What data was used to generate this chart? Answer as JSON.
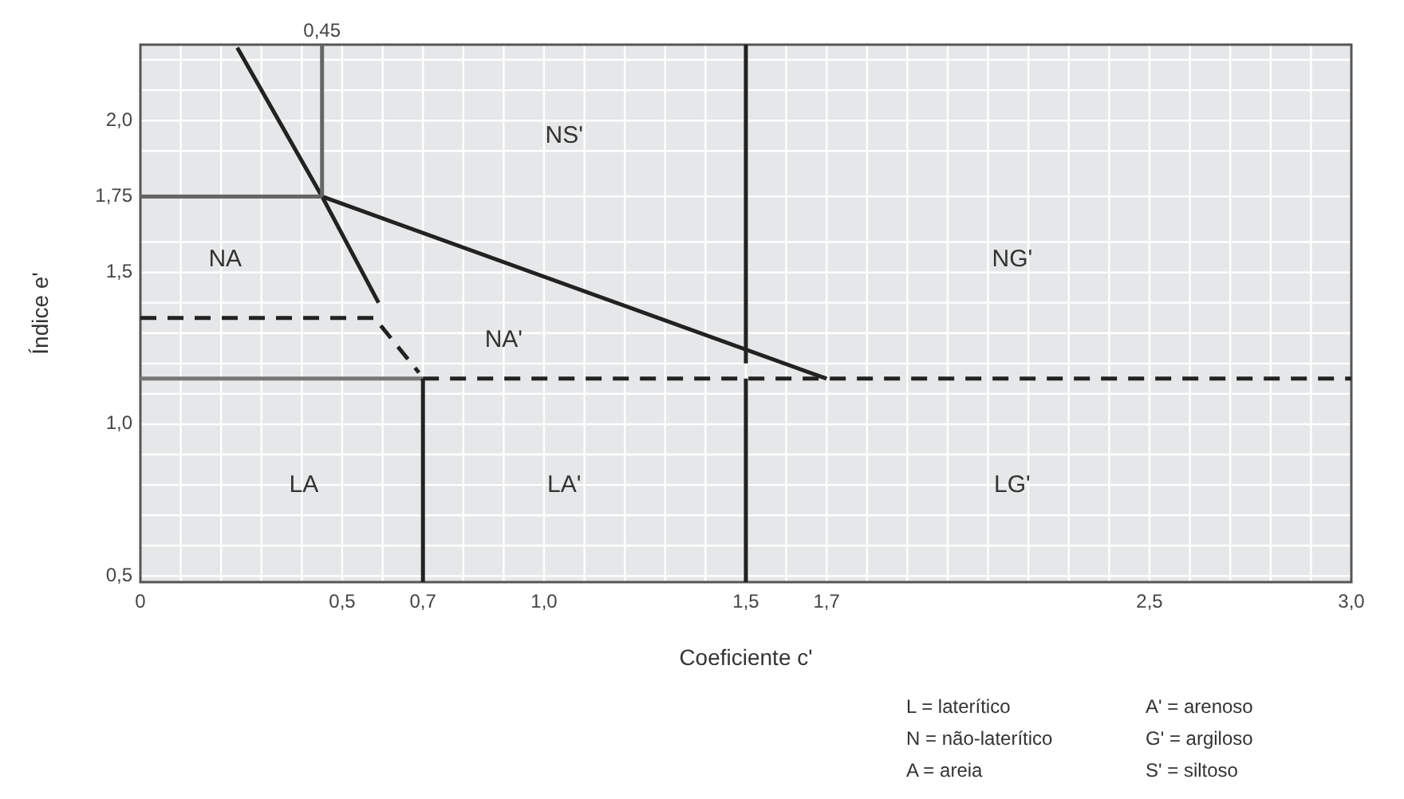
{
  "chart_data": {
    "type": "line",
    "xlabel": "Coeficiente c'",
    "ylabel": "Índice e'",
    "xlim": [
      0,
      3.0
    ],
    "ylim": [
      0.48,
      2.25
    ],
    "xticks": [
      {
        "value": 0,
        "label": "0"
      },
      {
        "value": 0.1,
        "label": null
      },
      {
        "value": 0.2,
        "label": null
      },
      {
        "value": 0.3,
        "label": null
      },
      {
        "value": 0.4,
        "label": null
      },
      {
        "value": 0.5,
        "label": "0,5"
      },
      {
        "value": 0.6,
        "label": null
      },
      {
        "value": 0.7,
        "label": "0,7"
      },
      {
        "value": 0.8,
        "label": null
      },
      {
        "value": 0.9,
        "label": null
      },
      {
        "value": 1.0,
        "label": "1,0"
      },
      {
        "value": 1.1,
        "label": null
      },
      {
        "value": 1.2,
        "label": null
      },
      {
        "value": 1.3,
        "label": null
      },
      {
        "value": 1.4,
        "label": null
      },
      {
        "value": 1.5,
        "label": "1,5"
      },
      {
        "value": 1.6,
        "label": null
      },
      {
        "value": 1.7,
        "label": "1,7"
      },
      {
        "value": 1.8,
        "label": null
      },
      {
        "value": 1.9,
        "label": null
      },
      {
        "value": 2.0,
        "label": null
      },
      {
        "value": 2.1,
        "label": null
      },
      {
        "value": 2.2,
        "label": null
      },
      {
        "value": 2.3,
        "label": null
      },
      {
        "value": 2.4,
        "label": null
      },
      {
        "value": 2.5,
        "label": "2,5"
      },
      {
        "value": 2.6,
        "label": null
      },
      {
        "value": 2.7,
        "label": null
      },
      {
        "value": 2.8,
        "label": null
      },
      {
        "value": 2.9,
        "label": null
      },
      {
        "value": 3.0,
        "label": "3,0"
      }
    ],
    "yticks": [
      {
        "value": 0.5,
        "label": "0,5"
      },
      {
        "value": 0.6,
        "label": null
      },
      {
        "value": 0.7,
        "label": null
      },
      {
        "value": 0.8,
        "label": null
      },
      {
        "value": 0.9,
        "label": null
      },
      {
        "value": 1.0,
        "label": "1,0"
      },
      {
        "value": 1.1,
        "label": null
      },
      {
        "value": 1.2,
        "label": null
      },
      {
        "value": 1.3,
        "label": null
      },
      {
        "value": 1.4,
        "label": null
      },
      {
        "value": 1.5,
        "label": "1,5"
      },
      {
        "value": 1.6,
        "label": null
      },
      {
        "value": 1.75,
        "label": "1,75"
      },
      {
        "value": 1.9,
        "label": null
      },
      {
        "value": 2.0,
        "label": "2,0"
      },
      {
        "value": 2.1,
        "label": null
      },
      {
        "value": 2.2,
        "label": null
      }
    ],
    "grid": true,
    "marker": "none",
    "series": [
      {
        "x": [
          0.24,
          0.45,
          0.59
        ],
        "values": [
          2.24,
          1.75,
          1.4
        ],
        "color": "#222222",
        "line_style": "solid"
      },
      {
        "x": [
          0.45,
          1.7
        ],
        "values": [
          1.75,
          1.15
        ],
        "color": "#222222",
        "line_style": "solid"
      },
      {
        "x": [
          0,
          0.45
        ],
        "values": [
          1.75,
          1.75
        ],
        "color": "#666666",
        "line_style": "solid"
      },
      {
        "x": [
          0.45,
          0.45
        ],
        "values": [
          1.75,
          2.25
        ],
        "color": "#666666",
        "line_style": "solid"
      },
      {
        "x": [
          0,
          0.58,
          0.69
        ],
        "values": [
          1.35,
          1.35,
          1.17
        ],
        "color": "#222222",
        "line_style": "dashed"
      },
      {
        "x": [
          0,
          0.7
        ],
        "values": [
          1.15,
          1.15
        ],
        "color": "#777777",
        "line_style": "solid"
      },
      {
        "x": [
          0.7,
          3.0
        ],
        "values": [
          1.15,
          1.15
        ],
        "color": "#222222",
        "line_style": "dashed"
      },
      {
        "x": [
          0.7,
          0.7
        ],
        "values": [
          1.15,
          0.48
        ],
        "color": "#222222",
        "line_style": "solid"
      },
      {
        "x": [
          1.5,
          1.5
        ],
        "values": [
          2.25,
          1.2
        ],
        "color": "#222222",
        "line_style": "solid"
      },
      {
        "x": [
          1.5,
          1.5
        ],
        "values": [
          1.15,
          0.48
        ],
        "color": "#222222",
        "line_style": "solid"
      }
    ],
    "annotations": [
      {
        "text": "0,45",
        "x": 0.45,
        "y": 2.25
      },
      "NS'",
      "NA",
      "NA'",
      "NG'",
      "LA",
      "LA'",
      "LG'",
      "L = laterítico",
      "A' = arenoso",
      "N = não-laterítico",
      "G' = argiloso",
      "A = areia",
      "S' = siltoso"
    ]
  }
}
